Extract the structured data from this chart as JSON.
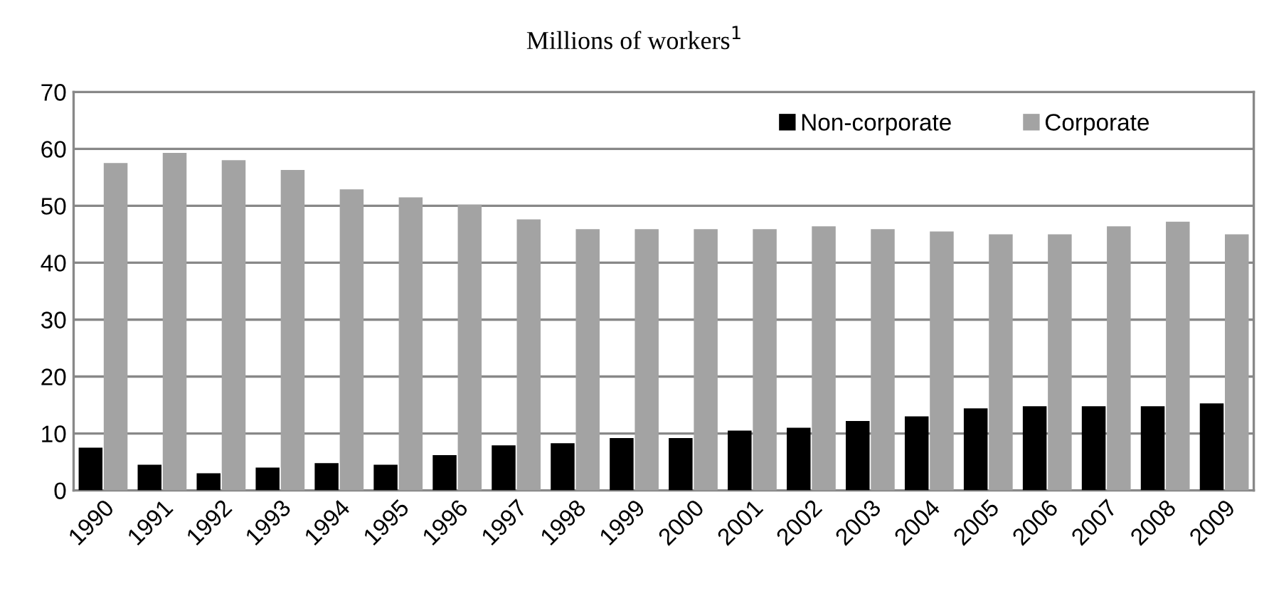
{
  "chart_data": {
    "type": "bar",
    "title": "Millions of workers$^{1}$",
    "categories": [
      "1990",
      "1991",
      "1992",
      "1993",
      "1994",
      "1995",
      "1996",
      "1997",
      "1998",
      "1999",
      "2000",
      "2001",
      "2002",
      "2003",
      "2004",
      "2005",
      "2006",
      "2007",
      "2008",
      "2009"
    ],
    "series": [
      {
        "name": "Non-corporate",
        "color": "#000000",
        "values": [
          7.5,
          4.5,
          3.0,
          4.0,
          4.8,
          4.5,
          6.2,
          7.9,
          8.3,
          9.2,
          9.2,
          10.5,
          11.0,
          12.2,
          13.0,
          14.4,
          14.8,
          14.8,
          14.8,
          15.3
        ]
      },
      {
        "name": "Corporate",
        "color": "#a3a3a3",
        "values": [
          57.5,
          59.3,
          58.0,
          56.3,
          52.9,
          51.5,
          50.2,
          47.6,
          45.9,
          45.9,
          45.9,
          45.9,
          46.4,
          45.9,
          45.5,
          45.0,
          45.0,
          46.4,
          47.2,
          45.0
        ]
      }
    ],
    "ylim": [
      0,
      70
    ],
    "yticks": [
      0,
      10,
      20,
      30,
      40,
      50,
      60,
      70
    ],
    "grid": "y",
    "legend": "top right"
  }
}
